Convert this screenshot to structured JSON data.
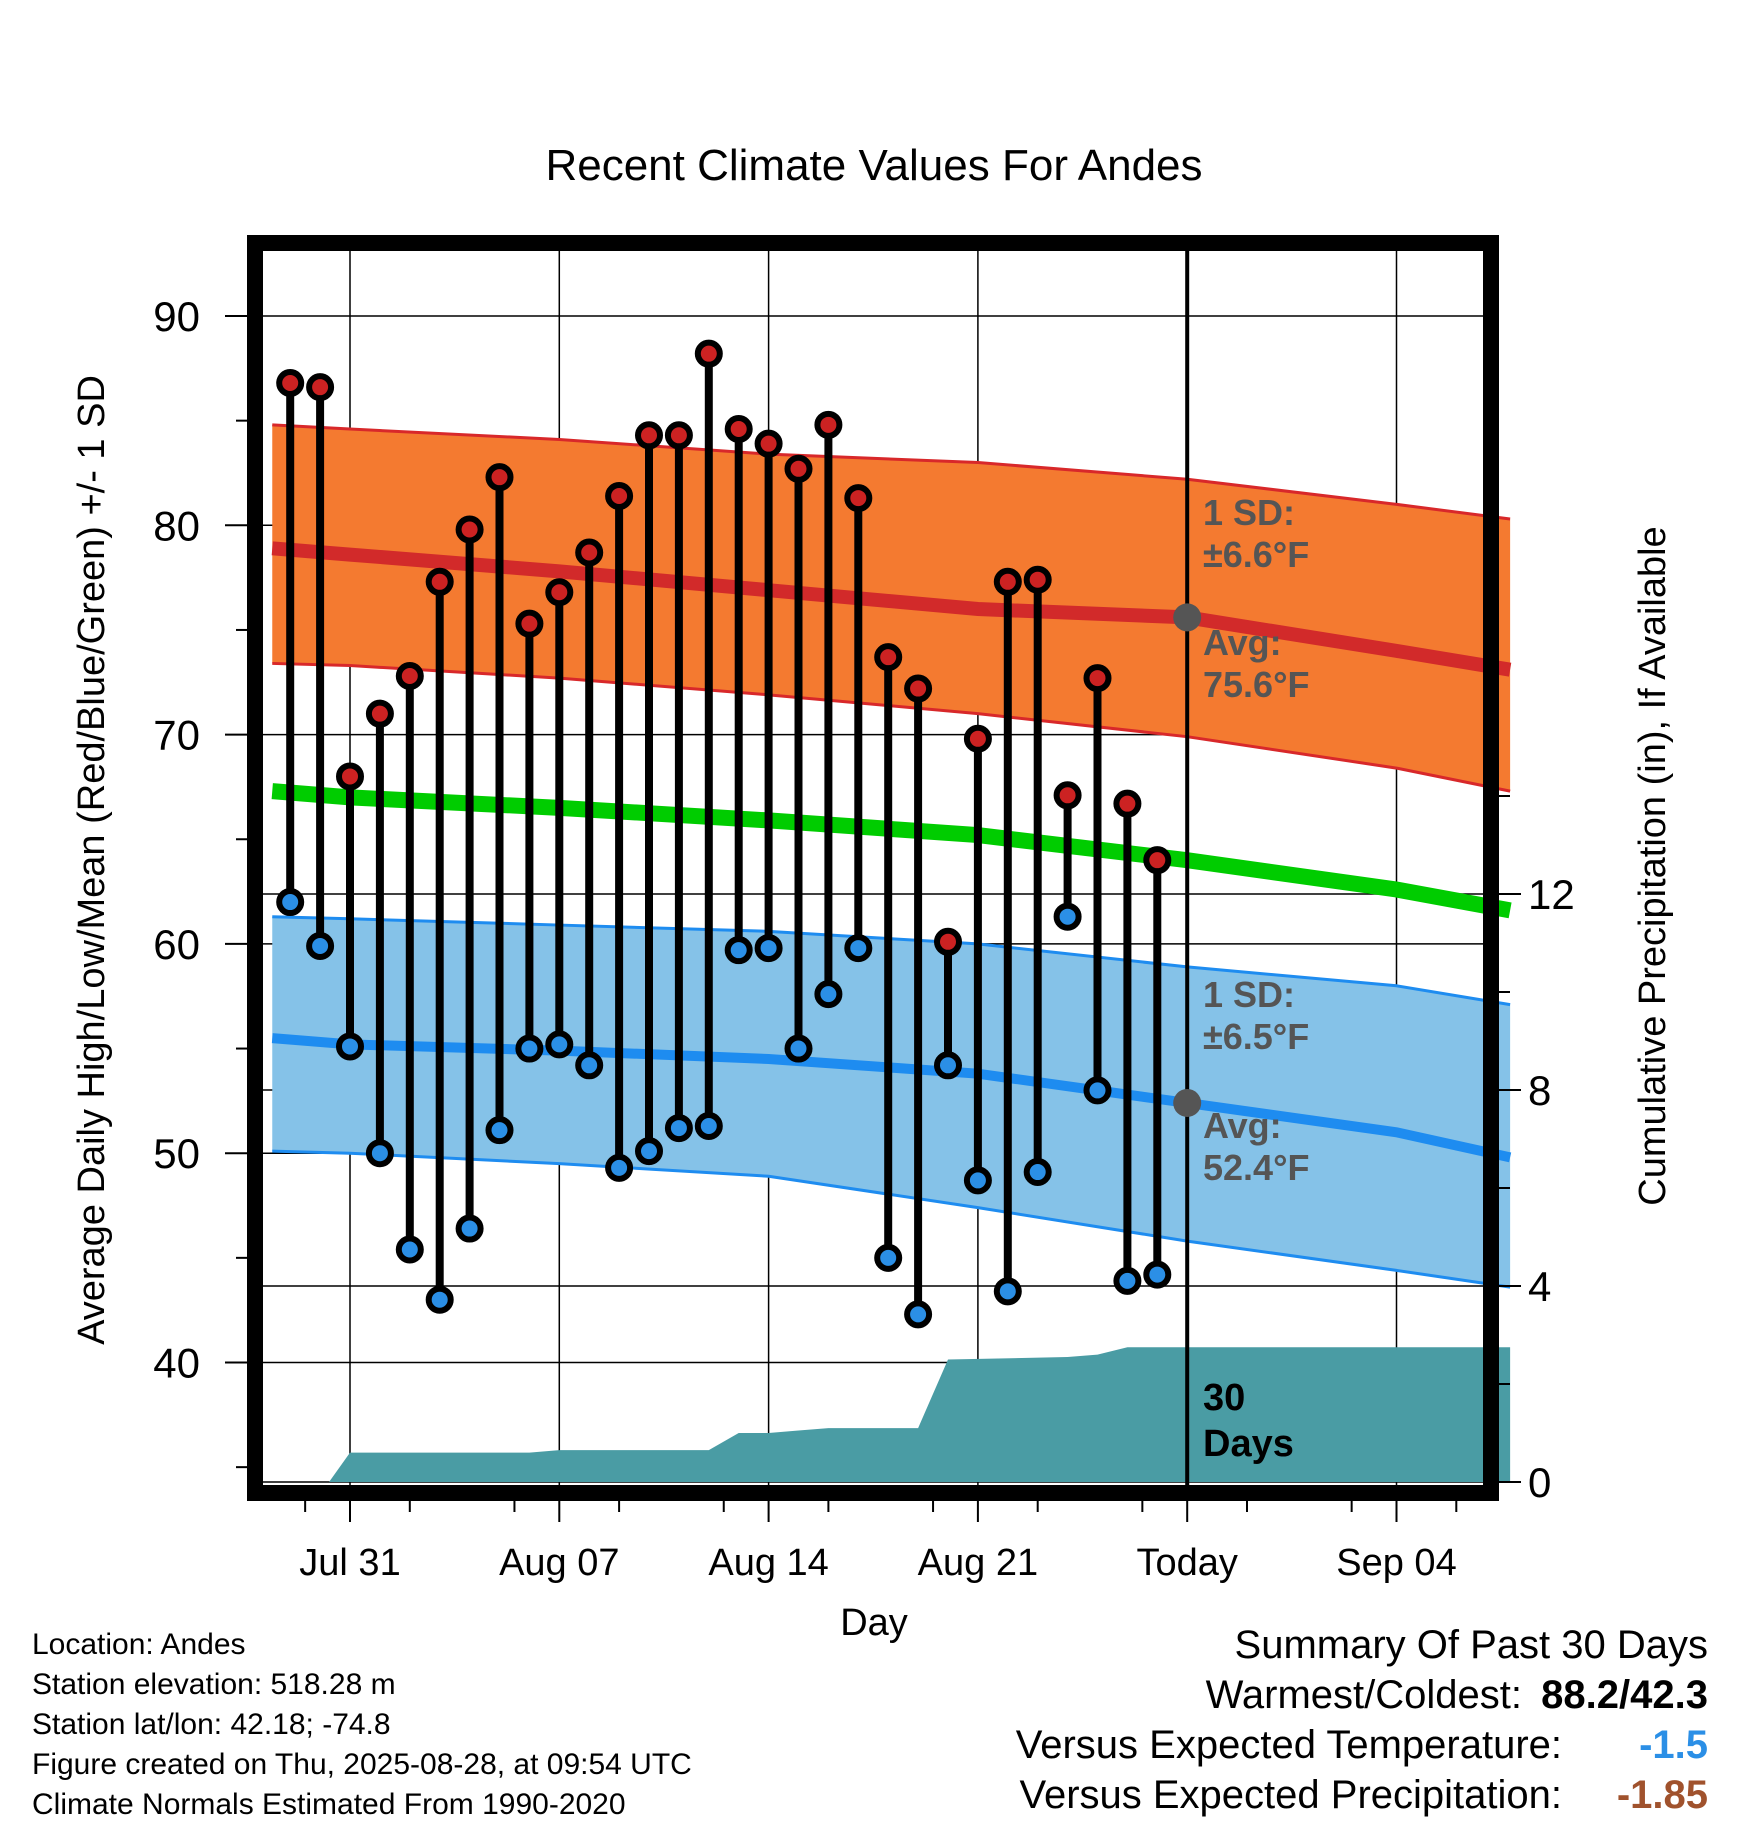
{
  "chart_data": {
    "type": "line",
    "title": "Recent Climate Values For Andes",
    "xlabel": "Day",
    "ylabel": "Average Daily High/Low/Mean (Red/Blue/Green) +/- 1 SD",
    "y2label": "Cumulative Precipitation (in), If Available",
    "ylim": [
      34.5,
      93.5
    ],
    "y2lim": [
      0,
      16
    ],
    "xlim": [
      -2.6,
      38.8
    ],
    "yticks": [
      40,
      50,
      60,
      70,
      80,
      90
    ],
    "y2ticks": [
      0,
      4,
      8,
      12
    ],
    "xticks": [
      {
        "x": 0,
        "label": "Jul 31"
      },
      {
        "x": 7,
        "label": "Aug 07"
      },
      {
        "x": 14,
        "label": "Aug 14"
      },
      {
        "x": 21,
        "label": "Aug 21"
      },
      {
        "x": 28,
        "label": "Today"
      },
      {
        "x": 35,
        "label": "Sep 04"
      }
    ],
    "grid": true,
    "today_x": 28,
    "days_label": [
      "30",
      "Days"
    ],
    "daily": {
      "x": [
        -2,
        -1,
        0,
        1,
        2,
        3,
        4,
        5,
        6,
        7,
        8,
        9,
        10,
        11,
        12,
        13,
        14,
        15,
        16,
        17,
        18,
        19,
        20,
        21,
        22,
        23,
        24,
        25,
        26,
        27
      ],
      "high": [
        86.8,
        86.6,
        68.0,
        71.0,
        72.8,
        77.3,
        79.8,
        82.3,
        75.3,
        76.8,
        78.7,
        81.4,
        84.3,
        84.3,
        88.2,
        84.6,
        83.9,
        82.7,
        84.8,
        81.3,
        73.7,
        72.2,
        60.1,
        69.8,
        77.3,
        77.4,
        67.1,
        72.7,
        66.7,
        64.0
      ],
      "low": [
        62.0,
        59.9,
        55.1,
        50.0,
        45.4,
        43.0,
        46.4,
        51.1,
        55.0,
        55.2,
        54.2,
        49.3,
        50.1,
        51.2,
        51.3,
        59.7,
        59.8,
        55.0,
        57.6,
        59.8,
        45.0,
        42.3,
        54.2,
        48.7,
        43.4,
        49.1,
        61.3,
        53.0,
        43.9,
        44.2
      ]
    },
    "normals": {
      "x": [
        -2.6,
        0,
        7,
        14,
        21,
        28,
        35,
        38.8
      ],
      "high_mean": [
        78.9,
        78.6,
        77.8,
        76.9,
        76.0,
        75.6,
        74.0,
        73.1
      ],
      "high_upper": [
        84.8,
        84.6,
        84.1,
        83.4,
        83.0,
        82.2,
        81.0,
        80.3
      ],
      "high_lower": [
        73.4,
        73.3,
        72.7,
        71.9,
        71.0,
        69.9,
        68.4,
        67.3
      ],
      "mean": [
        67.3,
        67.0,
        66.5,
        65.9,
        65.2,
        64.0,
        62.6,
        61.6
      ],
      "low_mean": [
        55.5,
        55.2,
        54.9,
        54.5,
        53.8,
        52.4,
        51.0,
        49.8
      ],
      "low_upper": [
        61.3,
        61.2,
        60.9,
        60.6,
        60.0,
        58.9,
        58.0,
        57.1
      ],
      "low_lower": [
        50.1,
        50.0,
        49.5,
        48.9,
        47.4,
        45.8,
        44.4,
        43.6
      ]
    },
    "precip_cumulative": {
      "x": [
        -2.6,
        -0.7,
        0,
        6,
        7,
        12,
        13,
        14,
        15,
        16,
        19,
        20,
        24,
        25,
        26,
        38.8
      ],
      "inches": [
        0,
        0,
        0.6,
        0.6,
        0.65,
        0.65,
        1.0,
        1.0,
        1.05,
        1.1,
        1.1,
        2.5,
        2.55,
        2.6,
        2.75,
        2.75
      ]
    },
    "annotations": [
      {
        "lines": [
          "1 SD:",
          "±6.6°F"
        ]
      },
      {
        "lines": [
          "Avg:",
          "75.6°F"
        ]
      },
      {
        "lines": [
          "1 SD:",
          "±6.5°F"
        ]
      },
      {
        "lines": [
          "Avg:",
          "52.4°F"
        ]
      }
    ],
    "colors": {
      "high_band": "#f47a30",
      "high_edge": "#d8282a",
      "high_mean": "#d22a2a",
      "mean": "#00cc00",
      "low_band": "#85c2e8",
      "low_edge": "#1e8cf0",
      "low_mean": "#1e8cf0",
      "precip": "#4a9ca4",
      "high_dot": "#cc2222",
      "low_dot": "#2b8fe6",
      "today_dot": "#555555",
      "annotation": "#555555",
      "temp_anomaly": "#2b8fe6",
      "precip_anomaly": "#a0522d"
    }
  },
  "meta": {
    "location": "Location: Andes",
    "elevation": "Station elevation: 518.28 m",
    "latlon": "Station lat/lon: 42.18; -74.8",
    "created": "Figure created on Thu, 2025-08-28, at 09:54 UTC",
    "normals": "Climate Normals Estimated From 1990-2020"
  },
  "summary": {
    "heading": "Summary Of Past 30 Days",
    "warm_cold_label": "Warmest/Coldest:",
    "warm_cold_value": "88.2/42.3",
    "temp_label": "Versus Expected Temperature:",
    "temp_value": "-1.5",
    "precip_label": "Versus Expected Precipitation:",
    "precip_value": "-1.85"
  }
}
